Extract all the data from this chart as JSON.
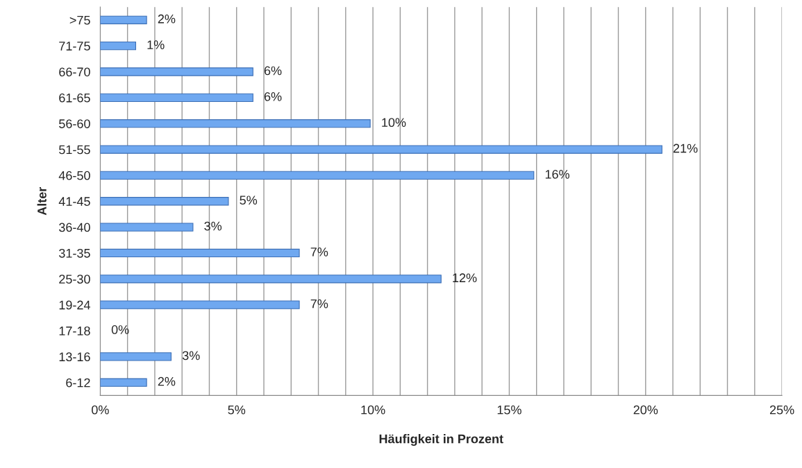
{
  "chart_data": {
    "type": "bar",
    "orientation": "horizontal",
    "xlabel": "Häufigkeit in Prozent",
    "ylabel": "Alter",
    "categories": [
      ">75",
      "71-75",
      "66-70",
      "61-65",
      "56-60",
      "51-55",
      "46-50",
      "41-45",
      "36-40",
      "31-35",
      "25-30",
      "19-24",
      "17-18",
      "13-16",
      "6-12"
    ],
    "values": [
      1.7,
      1.3,
      5.6,
      5.6,
      9.9,
      20.6,
      15.9,
      4.7,
      3.4,
      7.3,
      12.5,
      7.3,
      0,
      2.6,
      1.7
    ],
    "value_labels": [
      "2%",
      "1%",
      "6%",
      "6%",
      "10%",
      "21%",
      "16%",
      "5%",
      "3%",
      "7%",
      "12%",
      "7%",
      "0%",
      "3%",
      "2%"
    ],
    "color": "#6fa8f0",
    "xlim": [
      0,
      25
    ],
    "xticks": [
      {
        "value": 0,
        "label": "0%"
      },
      {
        "value": 1,
        "label": null
      },
      {
        "value": 2,
        "label": null
      },
      {
        "value": 3,
        "label": null
      },
      {
        "value": 4,
        "label": null
      },
      {
        "value": 5,
        "label": "5%"
      },
      {
        "value": 6,
        "label": null
      },
      {
        "value": 7,
        "label": null
      },
      {
        "value": 8,
        "label": null
      },
      {
        "value": 9,
        "label": null
      },
      {
        "value": 10,
        "label": "10%"
      },
      {
        "value": 11,
        "label": null
      },
      {
        "value": 12,
        "label": null
      },
      {
        "value": 13,
        "label": null
      },
      {
        "value": 14,
        "label": null
      },
      {
        "value": 15,
        "label": "15%"
      },
      {
        "value": 16,
        "label": null
      },
      {
        "value": 17,
        "label": null
      },
      {
        "value": 18,
        "label": null
      },
      {
        "value": 19,
        "label": null
      },
      {
        "value": 20,
        "label": "20%"
      },
      {
        "value": 21,
        "label": null
      },
      {
        "value": 22,
        "label": null
      },
      {
        "value": 23,
        "label": null
      },
      {
        "value": 24,
        "label": null
      },
      {
        "value": 25,
        "label": "25%"
      }
    ],
    "grid": "x"
  }
}
